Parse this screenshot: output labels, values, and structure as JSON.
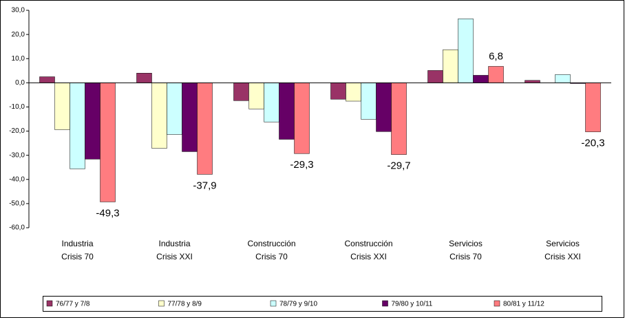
{
  "chart_data": {
    "type": "bar",
    "categories": [
      [
        "Industria",
        "Crisis 70"
      ],
      [
        "Industria",
        "Crisis XXI"
      ],
      [
        "Construcción",
        "Crisis 70"
      ],
      [
        "Construcción",
        "Crisis XXI"
      ],
      [
        "Servicios",
        "Crisis 70"
      ],
      [
        "Servicios",
        "Crisis XXI"
      ]
    ],
    "series": [
      {
        "name": "76/77 y 7/8",
        "color": "#993366",
        "values": [
          2.5,
          4.0,
          -7.4,
          -6.8,
          5.1,
          1.0
        ]
      },
      {
        "name": "77/78 y 8/9",
        "color": "#FFFFCC",
        "values": [
          -19.4,
          -27.1,
          -10.8,
          -7.6,
          13.7,
          0
        ]
      },
      {
        "name": "78/79 y 9/10",
        "color": "#CCFFFF",
        "values": [
          -35.6,
          -21.4,
          -16.2,
          -15.1,
          26.5,
          3.4
        ]
      },
      {
        "name": "79/80 y 10/11",
        "color": "#660066",
        "values": [
          -31.6,
          -28.5,
          -23.4,
          -20.2,
          3.1,
          -0.3
        ]
      },
      {
        "name": "80/81 y 11/12",
        "color": "#FF7C80",
        "values": [
          -49.3,
          -37.9,
          -29.3,
          -29.7,
          6.8,
          -20.3
        ],
        "value_labels": [
          "-49,3",
          "-37,9",
          "-29,3",
          "-29,7",
          "6,8",
          "-20,3"
        ]
      }
    ],
    "ylim": [
      -60,
      30
    ],
    "yticks": [
      {
        "value": -60,
        "label": "-60,0"
      },
      {
        "value": -50,
        "label": "-50,0"
      },
      {
        "value": -40,
        "label": "-40,0"
      },
      {
        "value": -30,
        "label": "-30,0"
      },
      {
        "value": -20,
        "label": "-20,0"
      },
      {
        "value": -10,
        "label": "-10,0"
      },
      {
        "value": 0,
        "label": "0,0"
      },
      {
        "value": 10,
        "label": "10,0"
      },
      {
        "value": 20,
        "label": "20,0"
      },
      {
        "value": 30,
        "label": "30,0"
      }
    ],
    "legend": "bottom"
  }
}
